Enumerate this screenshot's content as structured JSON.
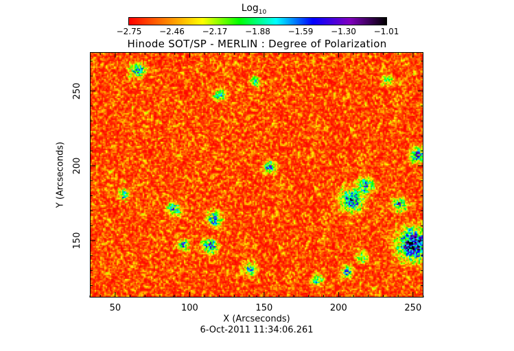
{
  "chart_data": {
    "type": "heatmap",
    "title": "Hinode SOT/SP - MERLIN : Degree of Polarization",
    "xlabel": "X (Arcseconds)",
    "ylabel": "Y (Arcseconds)",
    "xlim": [
      33,
      257
    ],
    "ylim": [
      112,
      276
    ],
    "xticks": [
      50,
      100,
      150,
      200,
      250
    ],
    "yticks": [
      150,
      200,
      250
    ],
    "colorbar": {
      "label": "Log",
      "label_sub": "10",
      "range": [
        -2.75,
        -1.01
      ],
      "ticks": [
        "-2.75",
        "-2.46",
        "-2.17",
        "-1.88",
        "-1.59",
        "-1.30",
        "-1.01"
      ],
      "colormap": [
        "#ff0000",
        "#ff8000",
        "#ffff00",
        "#00ff00",
        "#00ffff",
        "#0000ff",
        "#8000c0",
        "#000000"
      ]
    },
    "grid": false
  },
  "timestamp": "6-Oct-2011 11:34:06.261"
}
